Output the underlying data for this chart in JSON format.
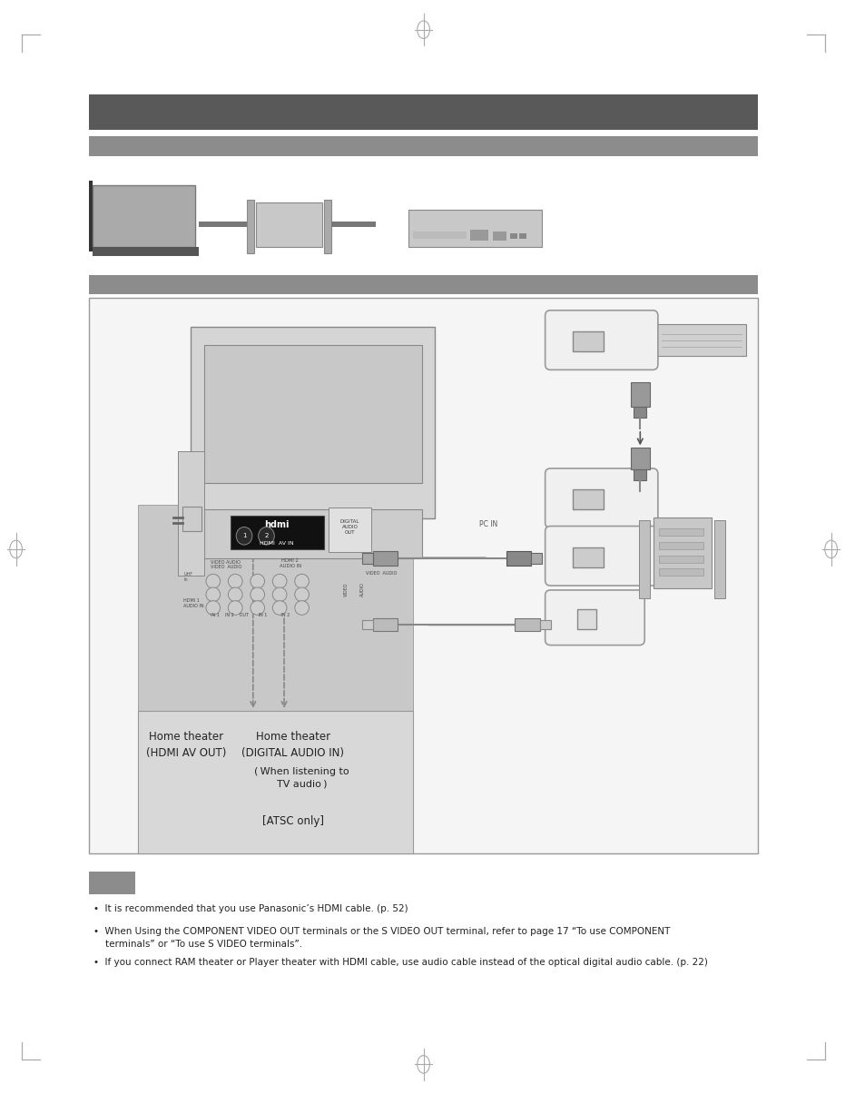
{
  "page_bg": "#ffffff",
  "header_bar_color": "#595959",
  "subheader_bar_color": "#8c8c8c",
  "note_box_color": "#8c8c8c",
  "bullet_notes": [
    "It is recommended that you use Panasonic’s HDMI cable. (p. 52)",
    "When Using the COMPONENT VIDEO OUT terminals or the S VIDEO OUT terminal, refer to page 17 “To use COMPONENT\n    terminals” or “To use S VIDEO terminals”.",
    "If you connect RAM theater or Player theater with HDMI cable, use audio cable instead of the optical digital audio cable. (p. 22)"
  ],
  "label_home_theater_hdmi": "Home theater\n(HDMI AV OUT)",
  "label_home_theater_digital": "Home theater\n(DIGITAL AUDIO IN)",
  "label_when_listening": "When listening to\nTV audio",
  "label_atsc": "[ATSC only]",
  "arrow_color": "#333333",
  "dark_gray": "#555555",
  "mid_gray": "#aaaaaa",
  "light_gray": "#d0d0d0",
  "lighter_gray": "#e0e0e0",
  "connector_gray": "#888888"
}
